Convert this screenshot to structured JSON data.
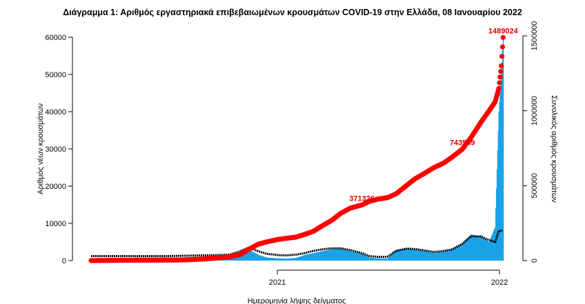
{
  "chart_data": {
    "type": "bar",
    "title": "Διάγραμμα 1: Αριθμός εργαστηριακά επιβεβαιωμένων κρουσμάτων COVID-19 στην Ελλάδα, 08 Ιανουαρίου 2022",
    "xlabel": "Ημερομηνία λήψης δείγματος",
    "ylabel": "Αριθμός νέων κρουσμάτων",
    "ylabel_right": "Συνολικός αριθμός κρουσμάτων",
    "x_ticks": [
      "2021",
      "2022"
    ],
    "y_ticks": [
      0,
      10000,
      20000,
      30000,
      40000,
      50000,
      60000
    ],
    "y_right_ticks": [
      0,
      500000,
      1000000,
      1500000
    ],
    "ylim": [
      0,
      60000
    ],
    "ylim_right": [
      0,
      1500000
    ],
    "grid": false,
    "colors": {
      "bars": "#1aa3e8",
      "moving_average": "#000000",
      "cumulative": "#ff0000",
      "annotation": "#e00000"
    },
    "dates": [
      "2020-03-01",
      "2020-04-01",
      "2020-05-01",
      "2020-06-01",
      "2020-07-01",
      "2020-08-01",
      "2020-09-01",
      "2020-10-01",
      "2020-10-15",
      "2020-11-01",
      "2020-11-15",
      "2020-12-01",
      "2020-12-15",
      "2021-01-01",
      "2021-01-15",
      "2021-02-01",
      "2021-02-15",
      "2021-03-01",
      "2021-03-15",
      "2021-04-01",
      "2021-04-15",
      "2021-05-01",
      "2021-05-20",
      "2021-06-01",
      "2021-06-15",
      "2021-07-01",
      "2021-07-15",
      "2021-08-01",
      "2021-08-15",
      "2021-09-01",
      "2021-09-15",
      "2021-10-01",
      "2021-10-15",
      "2021-11-01",
      "2021-11-15",
      "2021-12-01",
      "2021-12-15",
      "2021-12-25",
      "2021-12-31",
      "2022-01-04",
      "2022-01-07"
    ],
    "series": [
      {
        "type": "bar",
        "axis": "left",
        "values": [
          2,
          80,
          15,
          5,
          20,
          100,
          250,
          400,
          500,
          1700,
          3000,
          1500,
          800,
          600,
          500,
          700,
          1500,
          2000,
          2500,
          3000,
          3200,
          2500,
          1800,
          800,
          600,
          500,
          2800,
          3300,
          3000,
          2500,
          2000,
          2400,
          3000,
          4500,
          7000,
          6500,
          5000,
          9000,
          40000,
          50000,
          60000
        ]
      },
      {
        "type": "line",
        "axis": "left",
        "values": [
          1200,
          1200,
          1200,
          1200,
          1200,
          1300,
          1400,
          1500,
          1600,
          2500,
          3500,
          2500,
          1800,
          1500,
          1400,
          1600,
          2000,
          2600,
          3000,
          3300,
          3300,
          2800,
          2000,
          1200,
          1000,
          1000,
          2600,
          3200,
          3100,
          2700,
          2300,
          2600,
          3000,
          4500,
          6500,
          6500,
          5500,
          5000,
          8000,
          8000,
          8000
        ]
      },
      {
        "type": "line",
        "axis": "right",
        "values": [
          7,
          1300,
          2600,
          2900,
          3400,
          4500,
          10500,
          19000,
          25000,
          40000,
          75000,
          110000,
          125000,
          140000,
          148000,
          157000,
          175000,
          195000,
          230000,
          270000,
          315000,
          350000,
          371326,
          395000,
          410000,
          420000,
          445000,
          500000,
          545000,
          585000,
          620000,
          650000,
          690000,
          743549,
          820000,
          920000,
          1000000,
          1060000,
          1150000,
          1300000,
          1489024
        ]
      }
    ],
    "annotations": [
      {
        "date": "2021-05-20",
        "value": 371326,
        "label": "371326"
      },
      {
        "date": "2021-11-01",
        "value": 743549,
        "label": "743549"
      },
      {
        "date": "2022-01-07",
        "value": 1489024,
        "label": "1489024"
      }
    ]
  }
}
